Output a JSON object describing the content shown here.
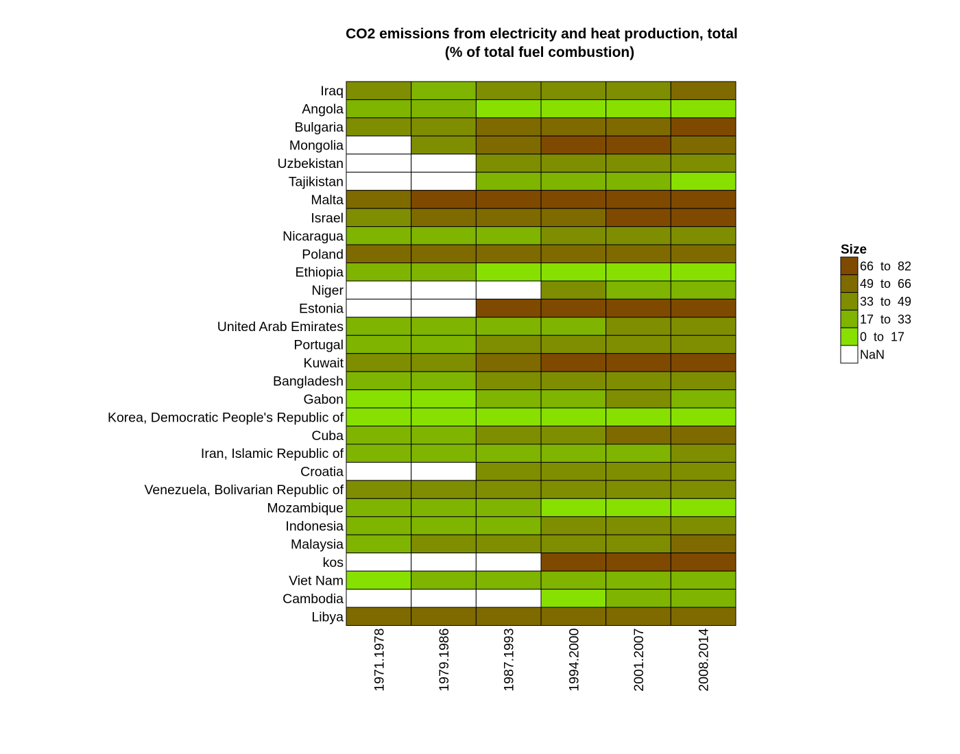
{
  "chart_data": {
    "type": "heatmap",
    "title_line1": "CO2 emissions from electricity and heat production, total",
    "title_line2": "(% of total fuel combustion)",
    "xlabel": "",
    "ylabel": "",
    "columns": [
      "1971.1978",
      "1979.1986",
      "1987.1993",
      "1994.2000",
      "2001.2007",
      "2008.2014"
    ],
    "rows": [
      "Iraq",
      "Angola",
      "Bulgaria",
      "Mongolia",
      "Uzbekistan",
      "Tajikistan",
      "Malta",
      "Israel",
      "Nicaragua",
      "Poland",
      "Ethiopia",
      "Niger",
      "Estonia",
      "United Arab Emirates",
      "Portugal",
      "Kuwait",
      "Bangladesh",
      "Gabon",
      "Korea, Democratic People's Republic of",
      "Cuba",
      "Iran, Islamic Republic of",
      "Croatia",
      "Venezuela, Bolivarian Republic of",
      "Mozambique",
      "Indonesia",
      "Malaysia",
      "kos",
      "Viet Nam",
      "Cambodia",
      "Libya"
    ],
    "values": [
      [
        40,
        30,
        41,
        42,
        44,
        55
      ],
      [
        28,
        30,
        8,
        10,
        9,
        8
      ],
      [
        40,
        42,
        58,
        60,
        62,
        72
      ],
      [
        null,
        38,
        57,
        70,
        72,
        60
      ],
      [
        null,
        null,
        42,
        42,
        45,
        40
      ],
      [
        null,
        null,
        25,
        22,
        24,
        15
      ],
      [
        60,
        75,
        78,
        80,
        76,
        74
      ],
      [
        45,
        56,
        58,
        62,
        72,
        74
      ],
      [
        28,
        30,
        30,
        38,
        40,
        38
      ],
      [
        58,
        58,
        57,
        55,
        55,
        52
      ],
      [
        25,
        30,
        10,
        12,
        8,
        11
      ],
      [
        null,
        null,
        null,
        36,
        28,
        30
      ],
      [
        null,
        null,
        73,
        74,
        76,
        75
      ],
      [
        30,
        30,
        32,
        32,
        38,
        40
      ],
      [
        30,
        28,
        34,
        36,
        40,
        40
      ],
      [
        40,
        38,
        52,
        70,
        72,
        72
      ],
      [
        28,
        30,
        36,
        38,
        40,
        38
      ],
      [
        10,
        12,
        30,
        30,
        38,
        30
      ],
      [
        12,
        12,
        10,
        12,
        9,
        10
      ],
      [
        30,
        30,
        38,
        38,
        50,
        55
      ],
      [
        28,
        28,
        30,
        30,
        30,
        36
      ],
      [
        null,
        null,
        42,
        42,
        42,
        40
      ],
      [
        40,
        40,
        42,
        42,
        42,
        42
      ],
      [
        28,
        28,
        30,
        12,
        10,
        11
      ],
      [
        28,
        28,
        30,
        36,
        40,
        40
      ],
      [
        28,
        38,
        36,
        38,
        42,
        55
      ],
      [
        null,
        null,
        null,
        73,
        72,
        72
      ],
      [
        10,
        25,
        25,
        25,
        28,
        30
      ],
      [
        null,
        null,
        null,
        12,
        28,
        30
      ],
      [
        55,
        55,
        55,
        55,
        55,
        55
      ]
    ],
    "legend": {
      "title": "Size",
      "position": "right",
      "bins": [
        {
          "label": "66  to  82",
          "color": "#7f4a00",
          "min": 66,
          "max": 82
        },
        {
          "label": "49  to  66",
          "color": "#7f6a00",
          "min": 49,
          "max": 66
        },
        {
          "label": "33  to  49",
          "color": "#7f8e00",
          "min": 33,
          "max": 49
        },
        {
          "label": "17  to  33",
          "color": "#7fb400",
          "min": 17,
          "max": 33
        },
        {
          "label": "0  to  17",
          "color": "#88e000",
          "min": 0,
          "max": 17
        },
        {
          "label": "NaN",
          "color": "#ffffff",
          "min": null,
          "max": null
        }
      ]
    },
    "grid": true
  }
}
